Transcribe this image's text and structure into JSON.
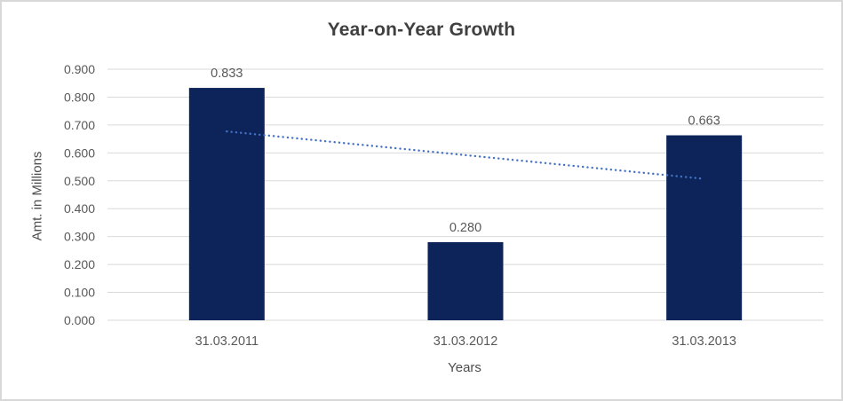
{
  "chart_data": {
    "type": "bar",
    "title": "Year-on-Year Growth",
    "xlabel": "Years",
    "ylabel": "Amt. in Millions",
    "categories": [
      "31.03.2011",
      "31.03.2012",
      "31.03.2013"
    ],
    "values": [
      0.833,
      0.28,
      0.663
    ],
    "value_labels": [
      "0.833",
      "0.280",
      "0.663"
    ],
    "ylim": [
      0.0,
      0.9
    ],
    "ytick_labels": [
      "0.000",
      "0.100",
      "0.200",
      "0.300",
      "0.400",
      "0.500",
      "0.600",
      "0.700",
      "0.800",
      "0.900"
    ],
    "grid": true,
    "legend": "none",
    "trendline": {
      "type": "linear",
      "style": "dotted",
      "start_value": 0.677,
      "end_value": 0.507
    },
    "colors": {
      "bar": "#0c2459",
      "trendline": "#4472c4",
      "gridline": "#d9d9d9",
      "tick_text": "#595959",
      "value_label_text": "#595959",
      "title_text": "#404040",
      "axis_title_text": "#4d4d4d",
      "border": "#d8d8d8"
    }
  }
}
